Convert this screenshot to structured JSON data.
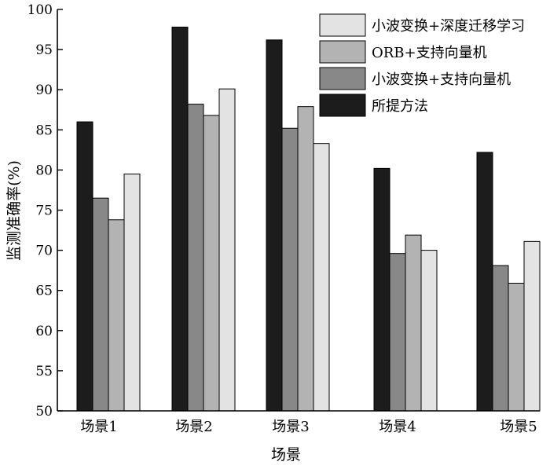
{
  "chart_data": {
    "type": "bar",
    "title": "",
    "xlabel": "场景",
    "ylabel": "监测准确率(%)",
    "ylim": [
      50,
      100
    ],
    "yticks": [
      50,
      55,
      60,
      65,
      70,
      75,
      80,
      85,
      90,
      95,
      100
    ],
    "grid": false,
    "legend_position": "top-right",
    "categories": [
      "场景1",
      "场景2",
      "场景3",
      "场景4",
      "场景5"
    ],
    "series": [
      {
        "name": "所提方法",
        "color": "#1c1c1c",
        "values": [
          86.0,
          97.8,
          96.2,
          80.2,
          82.2
        ]
      },
      {
        "name": "小波变换+支持向量机",
        "color": "#888888",
        "values": [
          76.5,
          88.2,
          85.2,
          69.6,
          68.1
        ]
      },
      {
        "name": "ORB+支持向量机",
        "color": "#b3b3b3",
        "values": [
          73.8,
          86.8,
          87.9,
          71.9,
          65.9
        ]
      },
      {
        "name": "小波变换+深度迁移学习",
        "color": "#e3e3e3",
        "values": [
          79.5,
          90.1,
          83.3,
          70.0,
          71.1
        ]
      }
    ],
    "legend_order": [
      "小波变换+深度迁移学习",
      "ORB+支持向量机",
      "小波变换+支持向量机",
      "所提方法"
    ]
  }
}
